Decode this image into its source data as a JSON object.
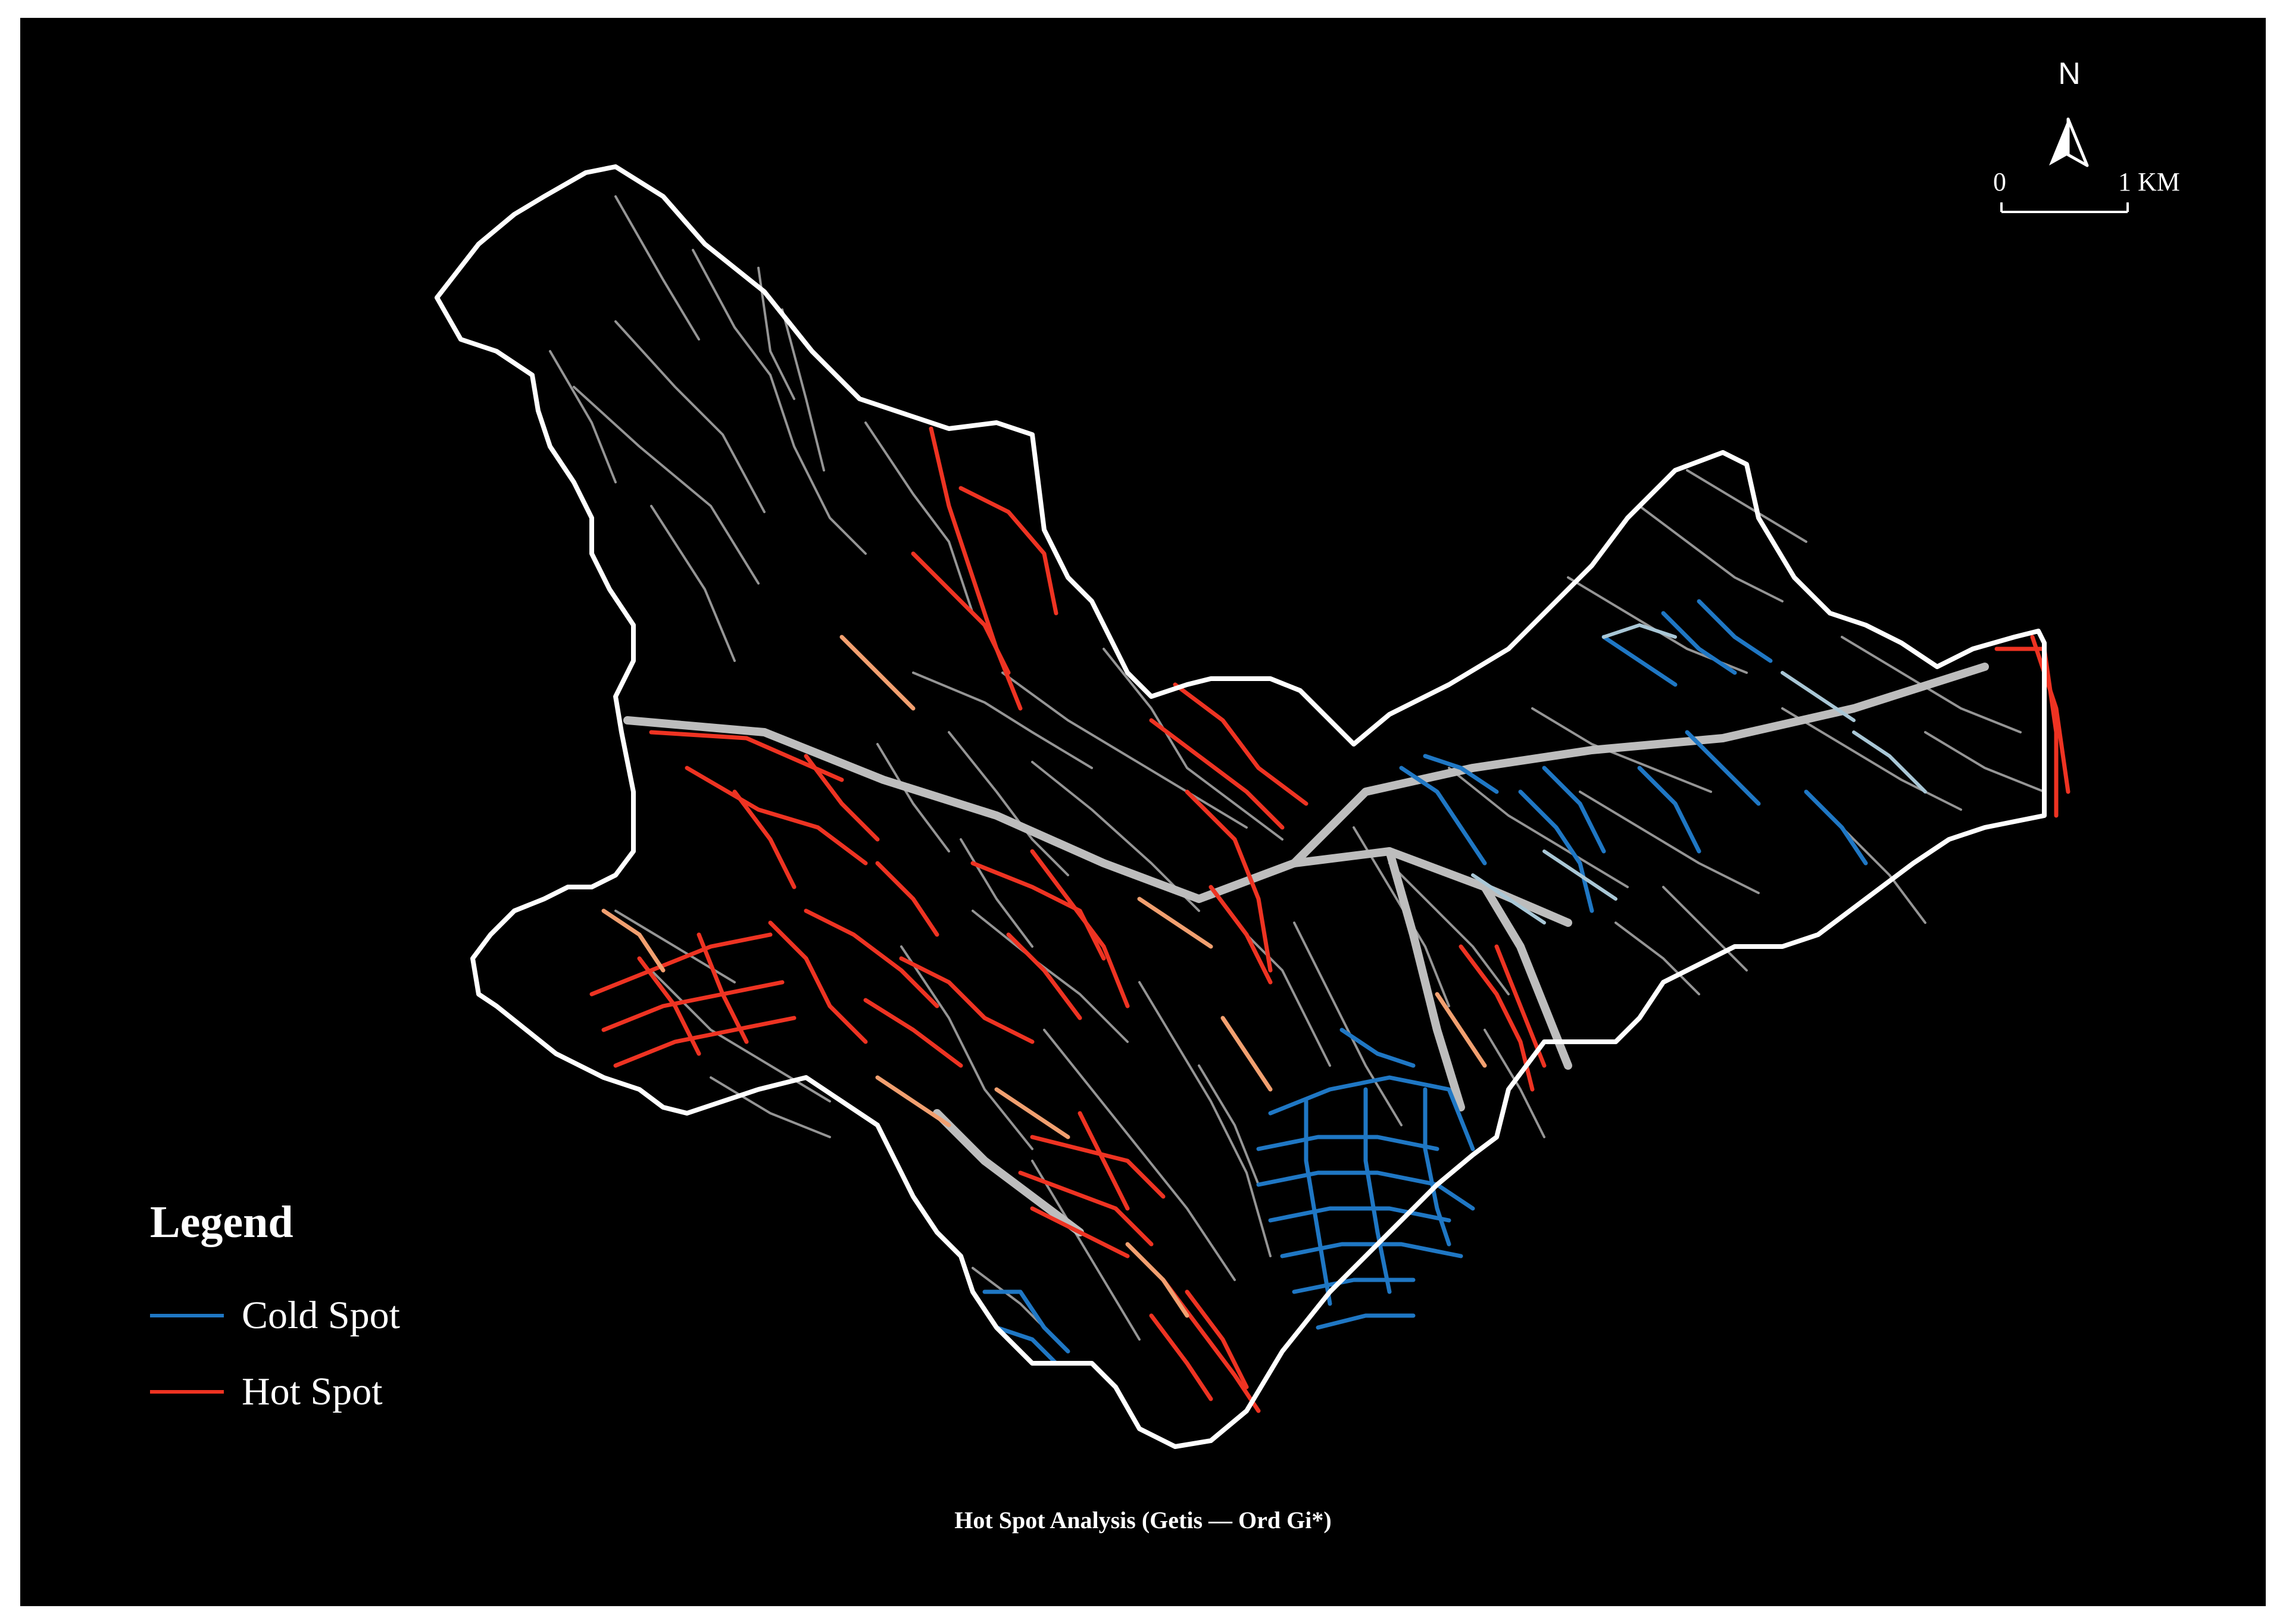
{
  "caption": "Hot Spot Analysis (Getis — Ord Gi*)",
  "legend": {
    "title": "Legend",
    "items": [
      {
        "label": "Cold Spot",
        "color": "#1f77c4"
      },
      {
        "label": "Hot Spot",
        "color": "#ee3322"
      }
    ]
  },
  "north_arrow": {
    "letter": "N"
  },
  "scale_bar": {
    "start_label": "0",
    "end_label": "1 KM"
  },
  "colors": {
    "background": "#000000",
    "boundary": "#ffffff",
    "roads": "#a6a6a6",
    "hot": "#ee3322",
    "warm": "#f2a070",
    "cold": "#1f77c4",
    "cool": "#a9c7d6"
  }
}
